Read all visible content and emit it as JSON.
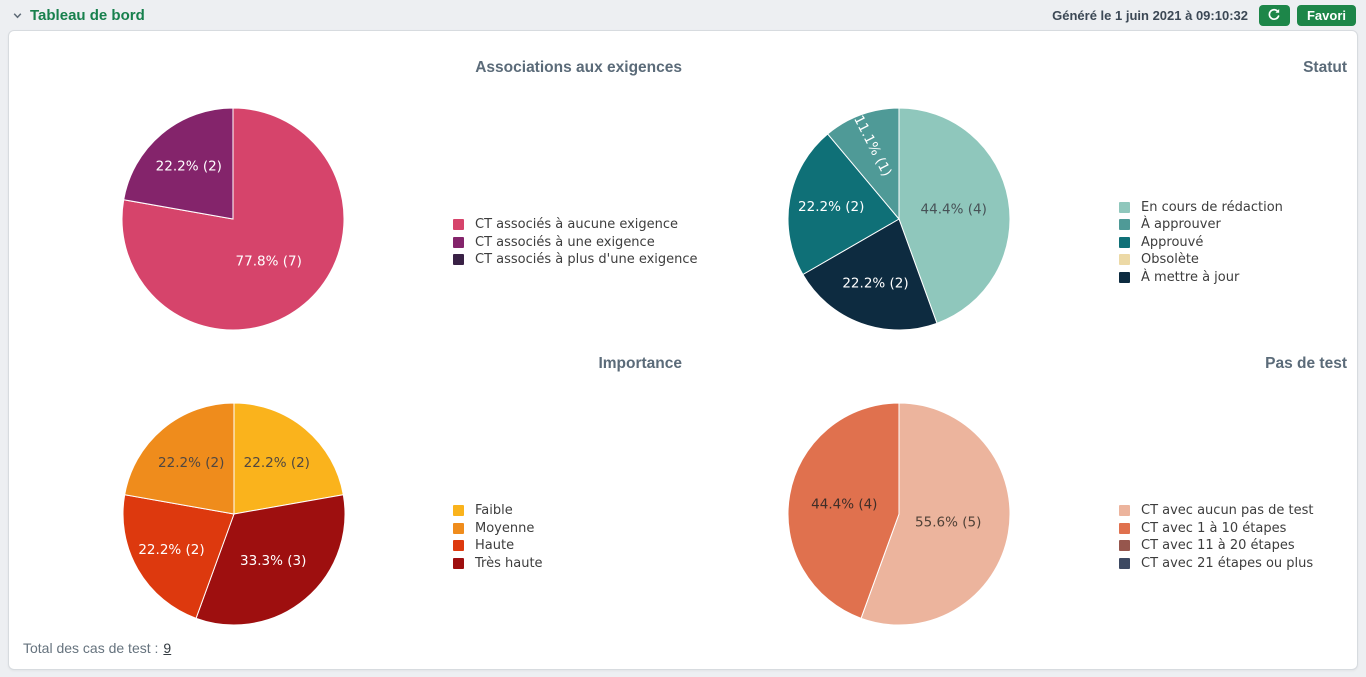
{
  "header": {
    "title": "Tableau de bord",
    "generated_label": "Généré le 1 juin 2021 à 09:10:32",
    "refresh_icon": "refresh-icon",
    "favorite_button_label": "Favori",
    "accent_color": "#1d8649"
  },
  "chart_data": [
    {
      "id": "associations-aux-exigences",
      "type": "pie",
      "title": "Associations aux exigences",
      "total": 9,
      "legend_position": "right",
      "legend": [
        {
          "label": "CT associés à aucune exigence",
          "color": "#d6446b",
          "value": 7
        },
        {
          "label": "CT associés à une exigence",
          "color": "#84246b",
          "value": 2
        },
        {
          "label": "CT associés à plus d'une exigence",
          "color": "#392145",
          "value": 0
        }
      ],
      "slices": [
        {
          "name": "CT associés à aucune exigence",
          "value": 7,
          "pct": "77.8",
          "color": "#d6446b",
          "label_color": "#ffffff"
        },
        {
          "name": "CT associés à une exigence",
          "value": 2,
          "pct": "22.2",
          "color": "#84246b",
          "label_color": "#ffffff"
        }
      ]
    },
    {
      "id": "statut",
      "type": "pie",
      "title": "Statut",
      "total": 9,
      "legend_position": "right",
      "legend": [
        {
          "label": "En cours de rédaction",
          "color": "#8fc7bc",
          "value": 4
        },
        {
          "label": "À approuver",
          "color": "#4f9a97",
          "value": 1
        },
        {
          "label": "Approuvé",
          "color": "#0f7077",
          "value": 2
        },
        {
          "label": "Obsolète",
          "color": "#ecd9a6",
          "value": 0
        },
        {
          "label": "À mettre à jour",
          "color": "#0d2b40",
          "value": 2
        }
      ],
      "slices": [
        {
          "name": "En cours de rédaction",
          "value": 4,
          "pct": "44.4",
          "color": "#8fc7bc",
          "label_color": "#475257"
        },
        {
          "name": "À mettre à jour",
          "value": 2,
          "pct": "22.2",
          "color": "#0d2b40",
          "label_color": "#ffffff"
        },
        {
          "name": "Approuvé",
          "value": 2,
          "pct": "22.2",
          "color": "#0f7077",
          "label_color": "#ffffff"
        },
        {
          "name": "À approuver",
          "value": 1,
          "pct": "11.1",
          "color": "#4f9a97",
          "label_color": "#ffffff"
        }
      ]
    },
    {
      "id": "importance",
      "type": "pie",
      "title": "Importance",
      "total": 9,
      "legend_position": "right",
      "legend": [
        {
          "label": "Faible",
          "color": "#fab31c",
          "value": 2
        },
        {
          "label": "Moyenne",
          "color": "#ef8c1c",
          "value": 2
        },
        {
          "label": "Haute",
          "color": "#dd390e",
          "value": 2
        },
        {
          "label": "Très haute",
          "color": "#9e0f0f",
          "value": 3
        }
      ],
      "slices": [
        {
          "name": "Faible",
          "value": 2,
          "pct": "22.2",
          "color": "#fab31c",
          "label_color": "#504741"
        },
        {
          "name": "Très haute",
          "value": 3,
          "pct": "33.3",
          "color": "#9e0f0f",
          "label_color": "#ffffff"
        },
        {
          "name": "Haute",
          "value": 2,
          "pct": "22.2",
          "color": "#dd390e",
          "label_color": "#ffffff"
        },
        {
          "name": "Moyenne",
          "value": 2,
          "pct": "22.2",
          "color": "#ef8c1c",
          "label_color": "#504741"
        }
      ]
    },
    {
      "id": "pas-de-test",
      "type": "pie",
      "title": "Pas de test",
      "total": 9,
      "legend_position": "right",
      "legend": [
        {
          "label": "CT avec aucun pas de test",
          "color": "#ecb49d",
          "value": 5
        },
        {
          "label": "CT avec 1 à 10 étapes",
          "color": "#e0714e",
          "value": 4
        },
        {
          "label": "CT avec 11 à 20 étapes",
          "color": "#96564d",
          "value": 0
        },
        {
          "label": "CT avec 21 étapes ou plus",
          "color": "#3d4962",
          "value": 0
        }
      ],
      "slices": [
        {
          "name": "CT avec aucun pas de test",
          "value": 5,
          "pct": "55.6",
          "color": "#ecb49d",
          "label_color": "#504137"
        },
        {
          "name": "CT avec 1 à 10 étapes",
          "value": 4,
          "pct": "44.4",
          "color": "#e0714e",
          "label_color": "#3f2e28"
        }
      ]
    }
  ],
  "footer": {
    "total_label": "Total des cas de test :",
    "total_value": "9"
  }
}
